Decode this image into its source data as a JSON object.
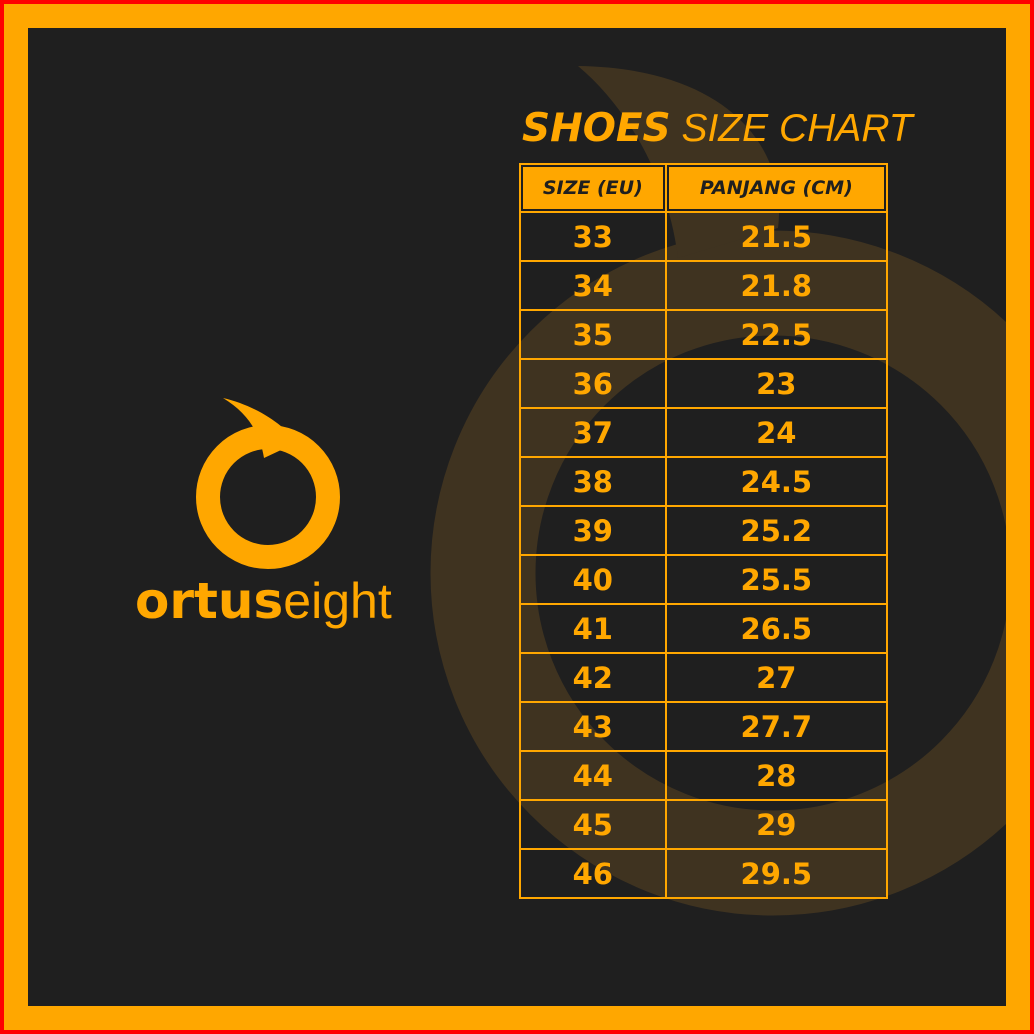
{
  "brand": {
    "name_bold": "ortus",
    "name_light": "eight",
    "color": "#ffa700"
  },
  "title": {
    "bold": "SHOES",
    "light": " SIZE CHART"
  },
  "table": {
    "headers": [
      "SIZE (EU)",
      "PANJANG (CM)"
    ],
    "rows": [
      [
        "33",
        "21.5"
      ],
      [
        "34",
        "21.8"
      ],
      [
        "35",
        "22.5"
      ],
      [
        "36",
        "23"
      ],
      [
        "37",
        "24"
      ],
      [
        "38",
        "24.5"
      ],
      [
        "39",
        "25.2"
      ],
      [
        "40",
        "25.5"
      ],
      [
        "41",
        "26.5"
      ],
      [
        "42",
        "27"
      ],
      [
        "43",
        "27.7"
      ],
      [
        "44",
        "28"
      ],
      [
        "45",
        "29"
      ],
      [
        "46",
        "29.5"
      ]
    ]
  },
  "colors": {
    "accent": "#ffa700",
    "background": "#1f1f1f",
    "outer_border": "#ff0000"
  }
}
